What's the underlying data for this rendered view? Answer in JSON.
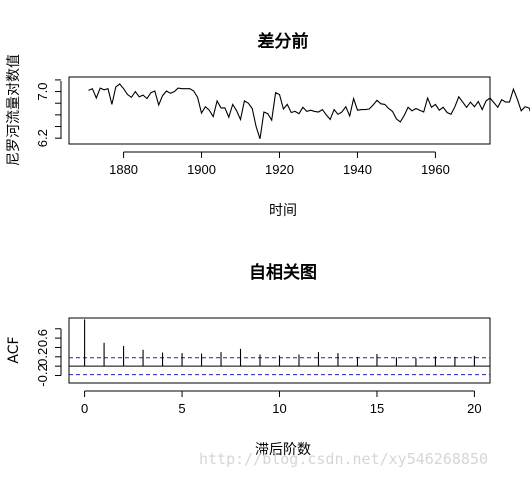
{
  "watermark": "http://blog.csdn.net/xy546268850",
  "chart_data": [
    {
      "type": "line",
      "title": "差分前",
      "xlabel": "时间",
      "ylabel": "尼罗河流量对数值",
      "xlim": [
        1866,
        1974
      ],
      "ylim": [
        6.1,
        7.25
      ],
      "xticks": [
        1880,
        1900,
        1920,
        1940,
        1960
      ],
      "yticks": [
        6.2,
        7.0
      ],
      "x_start": 1871,
      "values": [
        7.02,
        7.05,
        6.89,
        7.06,
        7.03,
        7.05,
        6.78,
        7.08,
        7.13,
        7.05,
        6.95,
        6.9,
        7.0,
        6.91,
        6.94,
        6.88,
        6.98,
        7.01,
        6.77,
        6.93,
        7.01,
        6.97,
        7.0,
        7.06,
        7.05,
        7.05,
        7.05,
        7.01,
        6.9,
        6.63,
        6.74,
        6.68,
        6.57,
        6.84,
        6.72,
        6.72,
        6.56,
        6.78,
        6.67,
        6.52,
        6.84,
        6.8,
        6.71,
        6.4,
        6.19,
        6.65,
        6.62,
        6.51,
        6.98,
        6.95,
        6.7,
        6.78,
        6.64,
        6.66,
        6.62,
        6.73,
        6.66,
        6.68,
        6.66,
        6.65,
        6.69,
        6.6,
        6.52,
        6.69,
        6.61,
        6.65,
        6.74,
        6.58,
        6.88,
        6.68,
        6.69,
        6.69,
        6.7,
        6.77,
        6.85,
        6.79,
        6.78,
        6.71,
        6.66,
        6.53,
        6.48,
        6.59,
        6.73,
        6.67,
        6.71,
        6.68,
        6.65,
        6.89,
        6.73,
        6.78,
        6.68,
        6.73,
        6.64,
        6.61,
        6.74,
        6.91,
        6.82,
        6.73,
        6.82,
        6.74,
        6.83,
        6.69,
        6.84,
        6.89,
        6.81,
        6.73,
        6.86,
        6.82,
        6.82,
        7.04,
        6.87,
        6.67,
        6.74,
        6.72,
        6.55,
        6.56,
        6.55,
        6.6
      ]
    },
    {
      "type": "bar",
      "title": "自相关图",
      "xlabel": "滞后阶数",
      "ylabel": "ACF",
      "xlim": [
        -0.8,
        20.8
      ],
      "ylim": [
        -0.36,
        1.03
      ],
      "xticks": [
        0,
        5,
        10,
        15,
        20
      ],
      "yticks": [
        -0.2,
        0.2,
        0.6
      ],
      "lags": [
        0,
        1,
        2,
        3,
        4,
        5,
        6,
        7,
        8,
        9,
        10,
        11,
        12,
        13,
        14,
        15,
        16,
        17,
        18,
        19,
        20
      ],
      "values": [
        1.0,
        0.5,
        0.43,
        0.35,
        0.29,
        0.28,
        0.27,
        0.3,
        0.37,
        0.25,
        0.23,
        0.25,
        0.3,
        0.28,
        0.2,
        0.26,
        0.19,
        0.17,
        0.21,
        0.2,
        0.22
      ],
      "conf_bounds": [
        0.18,
        -0.18
      ]
    }
  ]
}
